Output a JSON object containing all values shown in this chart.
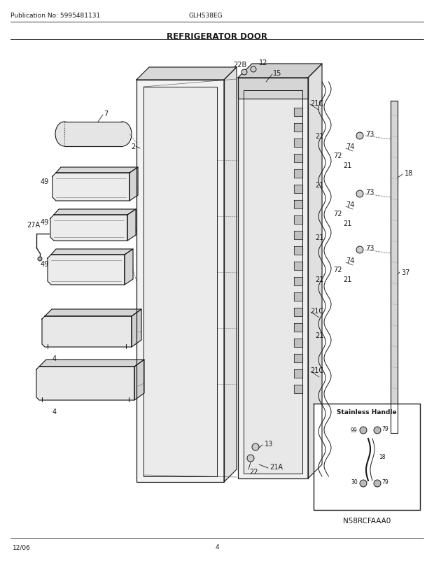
{
  "title": "REFRIGERATOR DOOR",
  "pub_no": "Publication No: 5995481131",
  "model": "GLHS38EG",
  "date": "12/06",
  "page": "4",
  "inset_label": "N58RCFAAA0",
  "inset_title": "Stainless Handle",
  "bg_color": "#ffffff",
  "line_color": "#1a1a1a",
  "label_fontsize": 7.0,
  "title_fontsize": 8.5
}
